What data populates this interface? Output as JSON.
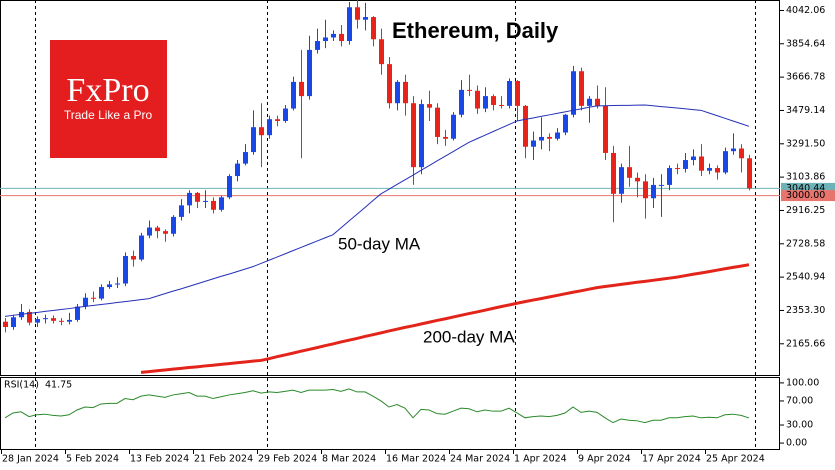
{
  "logo": {
    "brand": "FxPro",
    "tagline": "Trade Like a Pro"
  },
  "chart_data": {
    "type": "candlestick",
    "title": "Ethereum, Daily",
    "x": [
      "28 Jan 2024",
      "29 Jan 2024",
      "30 Jan 2024",
      "31 Jan 2024",
      "1 Feb 2024",
      "2 Feb 2024",
      "3 Feb 2024",
      "4 Feb 2024",
      "5 Feb 2024",
      "6 Feb 2024",
      "7 Feb 2024",
      "8 Feb 2024",
      "9 Feb 2024",
      "10 Feb 2024",
      "11 Feb 2024",
      "12 Feb 2024",
      "13 Feb 2024",
      "14 Feb 2024",
      "15 Feb 2024",
      "16 Feb 2024",
      "17 Feb 2024",
      "18 Feb 2024",
      "19 Feb 2024",
      "20 Feb 2024",
      "21 Feb 2024",
      "22 Feb 2024",
      "23 Feb 2024",
      "24 Feb 2024",
      "25 Feb 2024",
      "26 Feb 2024",
      "27 Feb 2024",
      "28 Feb 2024",
      "29 Feb 2024",
      "1 Mar 2024",
      "2 Mar 2024",
      "3 Mar 2024",
      "4 Mar 2024",
      "5 Mar 2024",
      "6 Mar 2024",
      "7 Mar 2024",
      "8 Mar 2024",
      "9 Mar 2024",
      "10 Mar 2024",
      "11 Mar 2024",
      "12 Mar 2024",
      "13 Mar 2024",
      "14 Mar 2024",
      "15 Mar 2024",
      "16 Mar 2024",
      "17 Mar 2024",
      "18 Mar 2024",
      "19 Mar 2024",
      "20 Mar 2024",
      "21 Mar 2024",
      "22 Mar 2024",
      "23 Mar 2024",
      "24 Mar 2024",
      "25 Mar 2024",
      "26 Mar 2024",
      "27 Mar 2024",
      "28 Mar 2024",
      "29 Mar 2024",
      "30 Mar 2024",
      "31 Mar 2024",
      "1 Apr 2024",
      "2 Apr 2024",
      "3 Apr 2024",
      "4 Apr 2024",
      "5 Apr 2024",
      "6 Apr 2024",
      "7 Apr 2024",
      "8 Apr 2024",
      "9 Apr 2024",
      "10 Apr 2024",
      "11 Apr 2024",
      "12 Apr 2024",
      "13 Apr 2024",
      "14 Apr 2024",
      "15 Apr 2024",
      "16 Apr 2024",
      "17 Apr 2024",
      "18 Apr 2024",
      "19 Apr 2024",
      "20 Apr 2024",
      "21 Apr 2024",
      "22 Apr 2024",
      "23 Apr 2024",
      "24 Apr 2024",
      "25 Apr 2024",
      "26 Apr 2024",
      "27 Apr 2024",
      "28 Apr 2024",
      "29 Apr 2024",
      "30 Apr 2024"
    ],
    "open": [
      2290,
      2260,
      2315,
      2345,
      2285,
      2305,
      2310,
      2295,
      2290,
      2300,
      2375,
      2425,
      2420,
      2485,
      2500,
      2505,
      2660,
      2640,
      2775,
      2820,
      2800,
      2785,
      2880,
      2945,
      3015,
      2965,
      2970,
      2920,
      2990,
      3110,
      3180,
      3245,
      3385,
      3340,
      3430,
      3420,
      3490,
      3640,
      3560,
      3820,
      3870,
      3890,
      3910,
      3870,
      4060,
      3990,
      4005,
      3880,
      3740,
      3520,
      3640,
      3520,
      3160,
      3515,
      3495,
      3330,
      3320,
      3455,
      3595,
      3590,
      3490,
      3560,
      3510,
      3505,
      3645,
      3505,
      3275,
      3310,
      3330,
      3320,
      3355,
      3455,
      3700,
      3505,
      3545,
      3505,
      3240,
      3010,
      3160,
      3100,
      3080,
      2985,
      3060,
      3060,
      3155,
      3150,
      3200,
      3220,
      3140,
      3155,
      3130,
      3250,
      3265,
      3210
    ],
    "high": [
      2310,
      2330,
      2390,
      2360,
      2320,
      2330,
      2325,
      2310,
      2340,
      2390,
      2450,
      2460,
      2500,
      2520,
      2540,
      2680,
      2690,
      2790,
      2860,
      2830,
      2810,
      2890,
      2980,
      3030,
      3020,
      3030,
      2990,
      3000,
      3120,
      3200,
      3290,
      3480,
      3520,
      3450,
      3450,
      3510,
      3670,
      3820,
      3900,
      3940,
      3990,
      3930,
      3960,
      4090,
      4100,
      4085,
      4010,
      3940,
      3780,
      3650,
      3680,
      3560,
      3540,
      3590,
      3520,
      3370,
      3470,
      3650,
      3680,
      3620,
      3610,
      3570,
      3560,
      3660,
      3650,
      3510,
      3360,
      3440,
      3350,
      3380,
      3460,
      3730,
      3720,
      3560,
      3620,
      3610,
      3280,
      3180,
      3280,
      3130,
      3120,
      3100,
      3120,
      3170,
      3180,
      3240,
      3260,
      3290,
      3180,
      3170,
      3270,
      3350,
      3290,
      3230
    ],
    "low": [
      2230,
      2245,
      2300,
      2270,
      2260,
      2280,
      2280,
      2270,
      2275,
      2290,
      2360,
      2400,
      2410,
      2475,
      2480,
      2490,
      2600,
      2630,
      2760,
      2760,
      2740,
      2770,
      2860,
      2900,
      2930,
      2930,
      2900,
      2910,
      2980,
      3080,
      3170,
      3230,
      3160,
      3320,
      3390,
      3410,
      3480,
      3210,
      3540,
      3800,
      3830,
      3870,
      3840,
      3850,
      3940,
      3930,
      3840,
      3680,
      3490,
      3480,
      3450,
      3060,
      3120,
      3420,
      3290,
      3280,
      3310,
      3440,
      3560,
      3460,
      3470,
      3480,
      3490,
      3490,
      3420,
      3210,
      3200,
      3260,
      3250,
      3310,
      3340,
      3440,
      3480,
      3410,
      3490,
      3200,
      2850,
      2960,
      3050,
      2990,
      2870,
      2930,
      2880,
      3030,
      3120,
      3130,
      3170,
      3110,
      3120,
      3090,
      3120,
      3230,
      3130,
      3030
    ],
    "close": [
      2260,
      2315,
      2345,
      2285,
      2305,
      2310,
      2295,
      2290,
      2300,
      2375,
      2425,
      2420,
      2485,
      2500,
      2505,
      2660,
      2640,
      2775,
      2820,
      2800,
      2785,
      2880,
      2945,
      3015,
      2965,
      2970,
      2920,
      2990,
      3110,
      3180,
      3245,
      3385,
      3340,
      3430,
      3420,
      3490,
      3640,
      3560,
      3820,
      3870,
      3890,
      3910,
      3870,
      4060,
      3990,
      4005,
      3880,
      3740,
      3520,
      3640,
      3520,
      3160,
      3515,
      3495,
      3330,
      3320,
      3455,
      3595,
      3590,
      3490,
      3560,
      3510,
      3505,
      3645,
      3505,
      3275,
      3310,
      3330,
      3320,
      3355,
      3455,
      3700,
      3505,
      3545,
      3505,
      3240,
      3010,
      3160,
      3100,
      3080,
      2985,
      3060,
      3060,
      3155,
      3150,
      3200,
      3220,
      3140,
      3155,
      3130,
      3250,
      3265,
      3210,
      3040.44
    ],
    "up_color": "#1a47e8",
    "down_color": "#e8231c",
    "ylim": [
      1990,
      4101
    ],
    "yticks": [
      4042.06,
      3854.64,
      3666.78,
      3479.14,
      {
        "value": 3291.5,
        "label": "3291.50"
      },
      3103.86,
      2916.25,
      2728.58,
      2540.94,
      {
        "value": 2353.3,
        "label": "2353.30"
      },
      2165.66
    ],
    "level": {
      "value": 3000,
      "label": "3000.00",
      "color": "#e8746e"
    },
    "last_price_color": "#6fb3b8",
    "series": [
      {
        "name": "50-day MA",
        "color": "#2430b8",
        "width": 1,
        "values": [
          2320,
          2326,
          2331,
          2337,
          2342,
          2348,
          2353,
          2359,
          2364,
          2370,
          2376,
          2381,
          2387,
          2392,
          2398,
          2403,
          2409,
          2414,
          2420,
          2434,
          2448,
          2462,
          2475,
          2489,
          2503,
          2517,
          2531,
          2545,
          2558,
          2572,
          2586,
          2600,
          2618,
          2636,
          2654,
          2672,
          2690,
          2708,
          2726,
          2744,
          2762,
          2780,
          2818,
          2857,
          2895,
          2933,
          2972,
          3010,
          3036,
          3063,
          3089,
          3115,
          3142,
          3168,
          3195,
          3221,
          3247,
          3274,
          3300,
          3320,
          3340,
          3360,
          3380,
          3400,
          3420,
          3429,
          3437,
          3446,
          3454,
          3463,
          3471,
          3480,
          3488,
          3497,
          3505,
          3506,
          3507,
          3508,
          3508,
          3509,
          3510,
          3506,
          3501,
          3497,
          3493,
          3489,
          3484,
          3480,
          3465,
          3450,
          3435,
          3420,
          3405,
          3390
        ]
      },
      {
        "name": "200-day MA",
        "color": "#e3241b",
        "width": 3,
        "values": [
          null,
          null,
          null,
          null,
          null,
          null,
          null,
          null,
          null,
          null,
          null,
          null,
          null,
          null,
          null,
          null,
          null,
          2005,
          2009,
          2014,
          2018,
          2023,
          2027,
          2032,
          2036,
          2041,
          2045,
          2050,
          2054,
          2059,
          2063,
          2068,
          2072,
          2082,
          2093,
          2103,
          2113,
          2124,
          2134,
          2144,
          2155,
          2165,
          2176,
          2186,
          2196,
          2207,
          2217,
          2227,
          2238,
          2248,
          2258,
          2267,
          2277,
          2287,
          2297,
          2306,
          2316,
          2326,
          2336,
          2345,
          2355,
          2365,
          2375,
          2384,
          2394,
          2403,
          2412,
          2420,
          2429,
          2438,
          2447,
          2456,
          2464,
          2473,
          2482,
          2488,
          2494,
          2500,
          2506,
          2512,
          2517,
          2523,
          2529,
          2535,
          2541,
          2549,
          2557,
          2564,
          2572,
          2580,
          2588,
          2596,
          2603,
          2611
        ]
      }
    ],
    "rsi": {
      "name": "RSI(14)",
      "color": "#2a8a2a",
      "ylim": [
        -11.5,
        109.8
      ],
      "yticks": [
        {
          "value": 100,
          "label": "100.00"
        },
        {
          "value": 70,
          "label": "70.00"
        },
        {
          "value": 30,
          "label": "30.00"
        },
        {
          "value": 0,
          "label": "0.00"
        }
      ],
      "values": [
        42,
        50,
        52,
        44,
        47,
        48,
        46,
        45,
        47,
        55,
        60,
        59,
        65,
        66,
        66,
        74,
        72,
        78,
        80,
        78,
        76,
        80,
        82,
        84,
        78,
        78,
        74,
        77,
        80,
        82,
        84,
        87,
        83,
        85,
        84,
        86,
        88,
        84,
        88,
        88,
        88,
        89,
        86,
        90,
        85,
        85,
        78,
        70,
        60,
        64,
        58,
        42,
        56,
        55,
        49,
        48,
        53,
        58,
        57,
        52,
        55,
        53,
        53,
        58,
        50,
        42,
        44,
        45,
        44,
        46,
        50,
        60,
        51,
        53,
        51,
        42,
        34,
        40,
        38,
        37,
        34,
        38,
        38,
        42,
        42,
        44,
        45,
        42,
        43,
        42,
        47,
        48,
        46,
        41.75
      ]
    }
  }
}
